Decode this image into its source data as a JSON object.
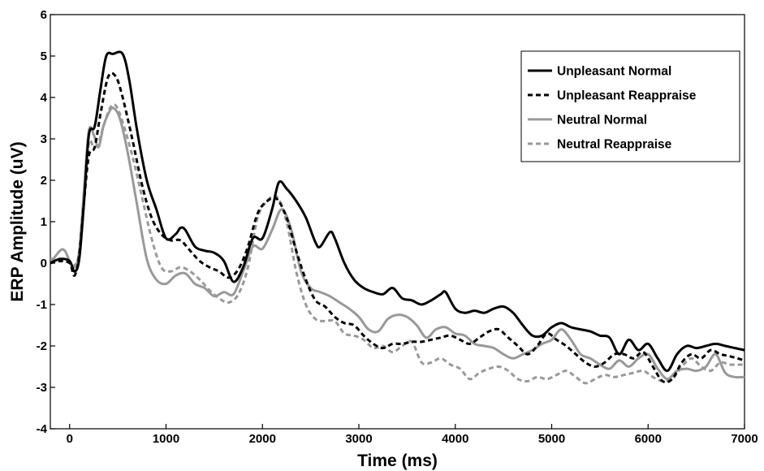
{
  "chart_data": {
    "type": "line",
    "title": "",
    "xlabel": "Time (ms)",
    "ylabel": "ERP Amplitude (uV)",
    "xlim": [
      -200,
      7000
    ],
    "ylim": [
      -4,
      6
    ],
    "xticks": [
      0,
      1000,
      2000,
      3000,
      4000,
      5000,
      6000,
      7000
    ],
    "yticks": [
      -4,
      -3,
      -2,
      -1,
      0,
      1,
      2,
      3,
      4,
      5,
      6
    ],
    "grid": false,
    "legend_position": "top-right",
    "series": [
      {
        "name": "Unpleasant Normal",
        "color": "#000000",
        "dash": "solid",
        "points": [
          [
            -200,
            0
          ],
          [
            -100,
            0.1
          ],
          [
            0,
            0.05
          ],
          [
            50,
            -0.2
          ],
          [
            100,
            0.1
          ],
          [
            150,
            1.5
          ],
          [
            200,
            3.1
          ],
          [
            260,
            3.3
          ],
          [
            320,
            4.2
          ],
          [
            380,
            5.0
          ],
          [
            450,
            5.05
          ],
          [
            550,
            5.05
          ],
          [
            620,
            4.4
          ],
          [
            700,
            3.2
          ],
          [
            800,
            2.0
          ],
          [
            900,
            1.3
          ],
          [
            1000,
            0.6
          ],
          [
            1100,
            0.7
          ],
          [
            1150,
            0.85
          ],
          [
            1200,
            0.8
          ],
          [
            1300,
            0.4
          ],
          [
            1400,
            0.3
          ],
          [
            1500,
            0.25
          ],
          [
            1600,
            0.05
          ],
          [
            1700,
            -0.45
          ],
          [
            1800,
            -0.1
          ],
          [
            1900,
            0.6
          ],
          [
            2000,
            0.6
          ],
          [
            2100,
            1.3
          ],
          [
            2170,
            1.95
          ],
          [
            2250,
            1.8
          ],
          [
            2350,
            1.5
          ],
          [
            2450,
            1.1
          ],
          [
            2550,
            0.5
          ],
          [
            2600,
            0.4
          ],
          [
            2700,
            0.75
          ],
          [
            2750,
            0.6
          ],
          [
            2850,
            0.0
          ],
          [
            2950,
            -0.4
          ],
          [
            3050,
            -0.6
          ],
          [
            3150,
            -0.7
          ],
          [
            3250,
            -0.75
          ],
          [
            3350,
            -0.6
          ],
          [
            3450,
            -0.85
          ],
          [
            3550,
            -0.9
          ],
          [
            3650,
            -1.0
          ],
          [
            3750,
            -0.9
          ],
          [
            3850,
            -0.75
          ],
          [
            3900,
            -0.7
          ],
          [
            4000,
            -1.1
          ],
          [
            4100,
            -1.2
          ],
          [
            4200,
            -1.15
          ],
          [
            4300,
            -1.2
          ],
          [
            4400,
            -1.1
          ],
          [
            4500,
            -1.05
          ],
          [
            4600,
            -1.2
          ],
          [
            4700,
            -1.5
          ],
          [
            4800,
            -1.75
          ],
          [
            4900,
            -1.75
          ],
          [
            5000,
            -1.55
          ],
          [
            5100,
            -1.45
          ],
          [
            5200,
            -1.55
          ],
          [
            5300,
            -1.6
          ],
          [
            5400,
            -1.65
          ],
          [
            5500,
            -1.75
          ],
          [
            5600,
            -1.8
          ],
          [
            5700,
            -2.2
          ],
          [
            5800,
            -1.85
          ],
          [
            5900,
            -2.1
          ],
          [
            6000,
            -1.95
          ],
          [
            6100,
            -2.3
          ],
          [
            6200,
            -2.6
          ],
          [
            6300,
            -2.2
          ],
          [
            6400,
            -2.0
          ],
          [
            6500,
            -2.05
          ],
          [
            6600,
            -2.0
          ],
          [
            6700,
            -1.95
          ],
          [
            6800,
            -2.0
          ],
          [
            6900,
            -2.05
          ],
          [
            7000,
            -2.1
          ]
        ]
      },
      {
        "name": "Unpleasant Reappraise",
        "color": "#000000",
        "dash": "dashed",
        "points": [
          [
            -200,
            0
          ],
          [
            -100,
            0.05
          ],
          [
            0,
            0.0
          ],
          [
            50,
            -0.3
          ],
          [
            100,
            0.2
          ],
          [
            150,
            1.5
          ],
          [
            200,
            2.6
          ],
          [
            260,
            2.8
          ],
          [
            320,
            3.6
          ],
          [
            400,
            4.5
          ],
          [
            480,
            4.5
          ],
          [
            550,
            4.0
          ],
          [
            650,
            3.0
          ],
          [
            750,
            1.9
          ],
          [
            850,
            1.1
          ],
          [
            950,
            0.7
          ],
          [
            1050,
            0.55
          ],
          [
            1150,
            0.55
          ],
          [
            1250,
            0.3
          ],
          [
            1350,
            0.05
          ],
          [
            1450,
            -0.1
          ],
          [
            1550,
            -0.2
          ],
          [
            1650,
            -0.35
          ],
          [
            1750,
            -0.15
          ],
          [
            1850,
            0.4
          ],
          [
            1950,
            1.2
          ],
          [
            2050,
            1.5
          ],
          [
            2150,
            1.55
          ],
          [
            2250,
            1.1
          ],
          [
            2350,
            0.3
          ],
          [
            2450,
            -0.4
          ],
          [
            2550,
            -0.9
          ],
          [
            2650,
            -1.05
          ],
          [
            2750,
            -1.3
          ],
          [
            2850,
            -1.45
          ],
          [
            2950,
            -1.5
          ],
          [
            3050,
            -1.75
          ],
          [
            3150,
            -1.95
          ],
          [
            3250,
            -2.05
          ],
          [
            3350,
            -1.95
          ],
          [
            3450,
            -1.95
          ],
          [
            3550,
            -1.9
          ],
          [
            3650,
            -1.9
          ],
          [
            3750,
            -1.85
          ],
          [
            3850,
            -1.8
          ],
          [
            3950,
            -1.75
          ],
          [
            4050,
            -1.85
          ],
          [
            4150,
            -1.95
          ],
          [
            4250,
            -1.8
          ],
          [
            4350,
            -1.65
          ],
          [
            4450,
            -1.6
          ],
          [
            4550,
            -1.8
          ],
          [
            4650,
            -2.0
          ],
          [
            4750,
            -2.2
          ],
          [
            4850,
            -2.0
          ],
          [
            4950,
            -1.7
          ],
          [
            5050,
            -1.85
          ],
          [
            5150,
            -2.0
          ],
          [
            5250,
            -2.2
          ],
          [
            5350,
            -2.4
          ],
          [
            5450,
            -2.5
          ],
          [
            5550,
            -2.4
          ],
          [
            5650,
            -2.2
          ],
          [
            5750,
            -2.2
          ],
          [
            5850,
            -2.3
          ],
          [
            5950,
            -2.15
          ],
          [
            6050,
            -2.5
          ],
          [
            6150,
            -2.85
          ],
          [
            6250,
            -2.8
          ],
          [
            6350,
            -2.4
          ],
          [
            6450,
            -2.2
          ],
          [
            6550,
            -2.3
          ],
          [
            6650,
            -2.1
          ],
          [
            6750,
            -2.2
          ],
          [
            6850,
            -2.25
          ],
          [
            7000,
            -2.35
          ]
        ]
      },
      {
        "name": "Neutral Normal",
        "color": "#999999",
        "dash": "solid",
        "points": [
          [
            -200,
            0
          ],
          [
            -100,
            0.3
          ],
          [
            -50,
            0.3
          ],
          [
            0,
            0.05
          ],
          [
            50,
            -0.1
          ],
          [
            100,
            0.3
          ],
          [
            150,
            1.8
          ],
          [
            200,
            3.2
          ],
          [
            250,
            3.1
          ],
          [
            300,
            2.8
          ],
          [
            350,
            3.3
          ],
          [
            400,
            3.6
          ],
          [
            450,
            3.75
          ],
          [
            520,
            3.5
          ],
          [
            600,
            2.7
          ],
          [
            700,
            1.4
          ],
          [
            800,
            0.1
          ],
          [
            900,
            -0.4
          ],
          [
            1000,
            -0.5
          ],
          [
            1100,
            -0.3
          ],
          [
            1200,
            -0.25
          ],
          [
            1300,
            -0.5
          ],
          [
            1400,
            -0.6
          ],
          [
            1500,
            -0.8
          ],
          [
            1600,
            -0.7
          ],
          [
            1700,
            -0.75
          ],
          [
            1800,
            -0.2
          ],
          [
            1900,
            0.4
          ],
          [
            2000,
            0.35
          ],
          [
            2100,
            0.8
          ],
          [
            2200,
            1.3
          ],
          [
            2300,
            0.8
          ],
          [
            2400,
            -0.2
          ],
          [
            2500,
            -0.6
          ],
          [
            2600,
            -0.7
          ],
          [
            2700,
            -0.8
          ],
          [
            2800,
            -0.95
          ],
          [
            2900,
            -1.1
          ],
          [
            3000,
            -1.3
          ],
          [
            3100,
            -1.6
          ],
          [
            3200,
            -1.65
          ],
          [
            3300,
            -1.35
          ],
          [
            3400,
            -1.25
          ],
          [
            3500,
            -1.3
          ],
          [
            3600,
            -1.5
          ],
          [
            3700,
            -1.8
          ],
          [
            3800,
            -1.6
          ],
          [
            3900,
            -1.55
          ],
          [
            4000,
            -1.7
          ],
          [
            4100,
            -1.75
          ],
          [
            4200,
            -1.95
          ],
          [
            4300,
            -2.0
          ],
          [
            4400,
            -2.05
          ],
          [
            4500,
            -2.2
          ],
          [
            4600,
            -2.3
          ],
          [
            4700,
            -2.2
          ],
          [
            4800,
            -2.1
          ],
          [
            4900,
            -1.95
          ],
          [
            5000,
            -1.85
          ],
          [
            5100,
            -1.6
          ],
          [
            5200,
            -1.85
          ],
          [
            5300,
            -2.2
          ],
          [
            5400,
            -2.3
          ],
          [
            5500,
            -2.45
          ],
          [
            5600,
            -2.55
          ],
          [
            5700,
            -2.35
          ],
          [
            5800,
            -2.5
          ],
          [
            5900,
            -2.3
          ],
          [
            6000,
            -2.2
          ],
          [
            6100,
            -2.55
          ],
          [
            6200,
            -2.8
          ],
          [
            6300,
            -2.6
          ],
          [
            6400,
            -2.55
          ],
          [
            6500,
            -2.6
          ],
          [
            6600,
            -2.5
          ],
          [
            6700,
            -2.2
          ],
          [
            6800,
            -2.65
          ],
          [
            6900,
            -2.75
          ],
          [
            7000,
            -2.75
          ]
        ]
      },
      {
        "name": "Neutral Reappraise",
        "color": "#999999",
        "dash": "dashed",
        "points": [
          [
            -200,
            0.1
          ],
          [
            -100,
            0.1
          ],
          [
            0,
            0.0
          ],
          [
            50,
            -0.05
          ],
          [
            100,
            0.2
          ],
          [
            150,
            1.6
          ],
          [
            200,
            2.9
          ],
          [
            250,
            2.8
          ],
          [
            300,
            2.9
          ],
          [
            350,
            3.3
          ],
          [
            420,
            3.75
          ],
          [
            480,
            3.8
          ],
          [
            550,
            3.4
          ],
          [
            650,
            2.6
          ],
          [
            750,
            1.6
          ],
          [
            850,
            0.6
          ],
          [
            950,
            -0.1
          ],
          [
            1050,
            -0.2
          ],
          [
            1150,
            -0.1
          ],
          [
            1250,
            -0.2
          ],
          [
            1350,
            -0.4
          ],
          [
            1450,
            -0.65
          ],
          [
            1550,
            -0.85
          ],
          [
            1650,
            -0.95
          ],
          [
            1750,
            -0.75
          ],
          [
            1850,
            -0.1
          ],
          [
            1950,
            1.1
          ],
          [
            2050,
            1.5
          ],
          [
            2150,
            1.6
          ],
          [
            2250,
            1.0
          ],
          [
            2350,
            -0.2
          ],
          [
            2450,
            -1.0
          ],
          [
            2550,
            -1.35
          ],
          [
            2650,
            -1.4
          ],
          [
            2750,
            -1.4
          ],
          [
            2850,
            -1.7
          ],
          [
            2950,
            -1.75
          ],
          [
            3050,
            -1.85
          ],
          [
            3150,
            -2.05
          ],
          [
            3250,
            -2.0
          ],
          [
            3350,
            -2.15
          ],
          [
            3450,
            -2.0
          ],
          [
            3550,
            -1.9
          ],
          [
            3650,
            -2.4
          ],
          [
            3750,
            -2.4
          ],
          [
            3850,
            -2.3
          ],
          [
            3950,
            -2.45
          ],
          [
            4050,
            -2.55
          ],
          [
            4150,
            -2.8
          ],
          [
            4250,
            -2.65
          ],
          [
            4350,
            -2.55
          ],
          [
            4450,
            -2.5
          ],
          [
            4550,
            -2.6
          ],
          [
            4650,
            -2.8
          ],
          [
            4750,
            -2.85
          ],
          [
            4850,
            -2.75
          ],
          [
            4950,
            -2.8
          ],
          [
            5050,
            -2.7
          ],
          [
            5150,
            -2.6
          ],
          [
            5250,
            -2.75
          ],
          [
            5350,
            -2.9
          ],
          [
            5450,
            -2.8
          ],
          [
            5550,
            -2.7
          ],
          [
            5650,
            -2.75
          ],
          [
            5750,
            -2.7
          ],
          [
            5850,
            -2.65
          ],
          [
            5950,
            -2.6
          ],
          [
            6050,
            -2.75
          ],
          [
            6150,
            -2.85
          ],
          [
            6250,
            -2.8
          ],
          [
            6350,
            -2.5
          ],
          [
            6450,
            -2.3
          ],
          [
            6550,
            -2.5
          ],
          [
            6650,
            -2.6
          ],
          [
            6750,
            -2.4
          ],
          [
            6850,
            -2.45
          ],
          [
            7000,
            -2.45
          ]
        ]
      }
    ]
  }
}
